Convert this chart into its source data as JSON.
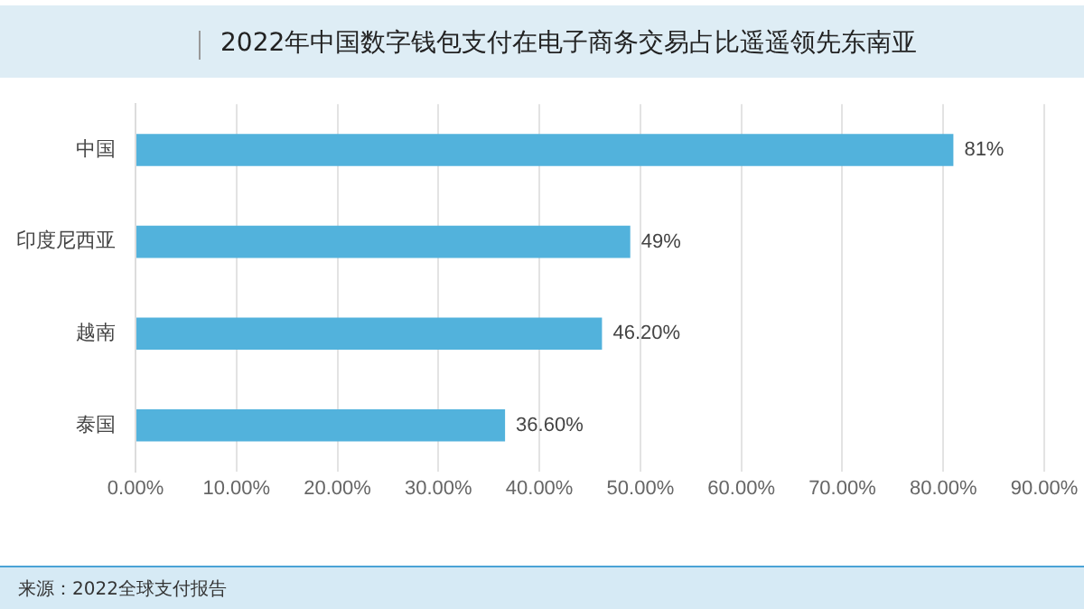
{
  "chart_data": {
    "type": "bar",
    "orientation": "horizontal",
    "title": "2022年中国数字钱包支付在电子商务交易占比遥遥领先东南亚",
    "categories": [
      "中国",
      "印度尼西亚",
      "越南",
      "泰国"
    ],
    "values": [
      81,
      49,
      46.2,
      36.6
    ],
    "color": "#52b2dc",
    "value_labels": [
      "81%",
      "49%",
      "46.20%",
      "36.60%"
    ],
    "xlim": [
      0,
      90
    ],
    "xticks": [
      {
        "value": 0,
        "label": "0.00%"
      },
      {
        "value": 10,
        "label": "10.00%"
      },
      {
        "value": 20,
        "label": "20.00%"
      },
      {
        "value": 30,
        "label": "30.00%"
      },
      {
        "value": 40,
        "label": "40.00%"
      },
      {
        "value": 50,
        "label": "50.00%"
      },
      {
        "value": 60,
        "label": "60.00%"
      },
      {
        "value": 70,
        "label": "70.00%"
      },
      {
        "value": 80,
        "label": "80.00%"
      },
      {
        "value": 90,
        "label": "90.00%"
      }
    ],
    "grid": "x",
    "annotations": [
      "来源：2022全球支付报告"
    ]
  }
}
